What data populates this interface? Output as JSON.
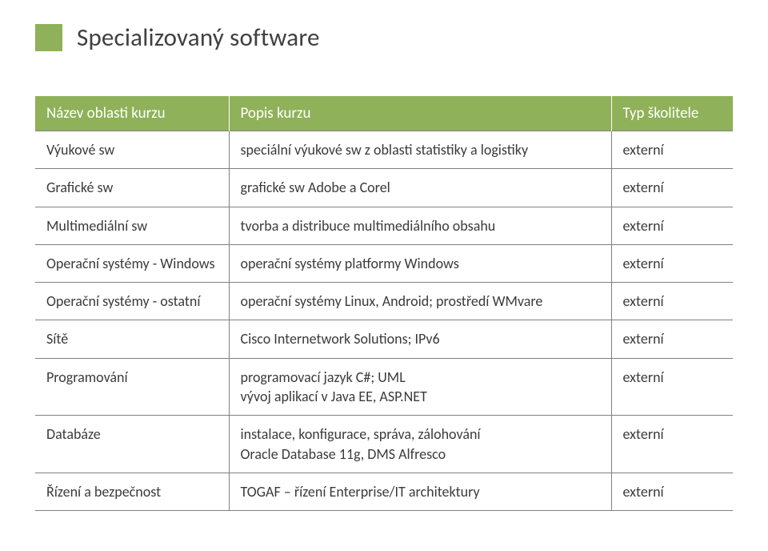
{
  "title": {
    "bullet_color": "#8fb159",
    "text": "Specializovaný software",
    "text_color": "#404040",
    "font_size_pt": 24
  },
  "table": {
    "header_bg": "#8fb159",
    "header_text_color": "#ffffff",
    "border_color": "#808080",
    "cell_text_color": "#3b3b3b",
    "columns": [
      "Název oblasti kurzu",
      "Popis kurzu",
      "Typ školitele"
    ],
    "rows": [
      [
        "Výukové sw",
        "speciální výukové sw z oblasti statistiky a logistiky",
        "externí"
      ],
      [
        "Grafické sw",
        "grafické sw Adobe a Corel",
        "externí"
      ],
      [
        "Multimediální sw",
        "tvorba a distribuce multimediálního obsahu",
        "externí"
      ],
      [
        "Operační systémy - Windows",
        "operační systémy platformy Windows",
        "externí"
      ],
      [
        "Operační systémy - ostatní",
        "operační systémy Linux, Android; prostředí WMvare",
        "externí"
      ],
      [
        "Sítě",
        "Cisco Internetwork Solutions; IPv6",
        "externí"
      ],
      [
        "Programování",
        "programovací jazyk C#; UML\nvývoj aplikací v Java EE, ASP.NET",
        "externí"
      ],
      [
        "Databáze",
        "instalace, konfigurace, správa, zálohování\nOracle Database 11g, DMS Alfresco",
        "externí"
      ],
      [
        "Řízení a bezpečnost",
        "TOGAF – řízení Enterprise/IT architektury",
        "externí"
      ]
    ]
  }
}
